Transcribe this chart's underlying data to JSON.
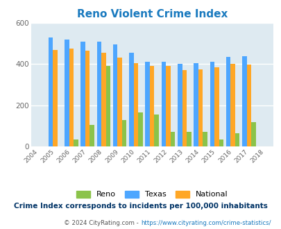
{
  "title": "Reno Violent Crime Index",
  "subtitle": "Crime Index corresponds to incidents per 100,000 inhabitants",
  "footer": "© 2024 CityRating.com - https://www.cityrating.com/crime-statistics/",
  "years": [
    2004,
    2005,
    2006,
    2007,
    2008,
    2009,
    2010,
    2011,
    2012,
    2013,
    2014,
    2015,
    2016,
    2017,
    2018
  ],
  "bar_years": [
    2005,
    2006,
    2007,
    2008,
    2009,
    2010,
    2011,
    2012,
    2013,
    2014,
    2015,
    2016,
    2017
  ],
  "reno": [
    0,
    35,
    105,
    390,
    130,
    165,
    155,
    70,
    70,
    70,
    35,
    65,
    120
  ],
  "texas": [
    530,
    520,
    510,
    510,
    495,
    455,
    410,
    410,
    402,
    405,
    410,
    435,
    440
  ],
  "national": [
    470,
    475,
    465,
    455,
    430,
    405,
    390,
    390,
    370,
    375,
    383,
    400,
    398
  ],
  "reno_color": "#8bc34a",
  "texas_color": "#4da6ff",
  "national_color": "#ffa726",
  "bg_color": "#deeaf1",
  "title_color": "#1a7abf",
  "subtitle_color": "#003366",
  "footer_color": "#555555",
  "footer_url_color": "#1a7abf",
  "ylim": [
    0,
    600
  ],
  "yticks": [
    0,
    200,
    400,
    600
  ],
  "bar_width": 0.28,
  "grid_color": "#ffffff"
}
